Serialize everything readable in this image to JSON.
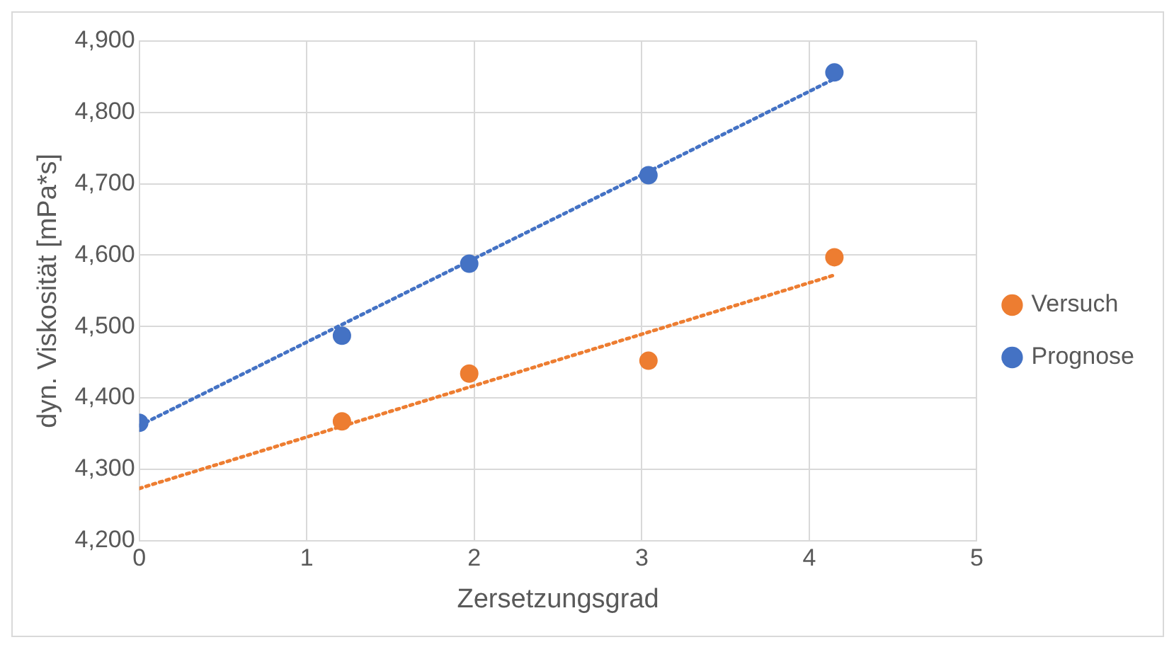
{
  "chart_data": {
    "type": "scatter",
    "xlabel": "Zersetzungsgrad",
    "ylabel": "dyn. Viskosität [mPa*s]",
    "xlim": [
      0,
      5
    ],
    "xticks": [
      0,
      1,
      2,
      3,
      4,
      5
    ],
    "ylim": [
      4200,
      4900
    ],
    "yticks": [
      {
        "value": 4200,
        "label": "4,200"
      },
      {
        "value": 4300,
        "label": "4,300"
      },
      {
        "value": 4400,
        "label": "4,400"
      },
      {
        "value": 4500,
        "label": "4,500"
      },
      {
        "value": 4600,
        "label": "4,600"
      },
      {
        "value": 4700,
        "label": "4,700"
      },
      {
        "value": 4800,
        "label": "4,800"
      },
      {
        "value": 4900,
        "label": "4,900"
      }
    ],
    "grid": true,
    "legend": "right",
    "marker": "circle",
    "series": [
      {
        "name": "Versuch",
        "color": "#ed7d31",
        "x": [
          1.21,
          1.97,
          3.04,
          4.15
        ],
        "values": [
          4367,
          4434,
          4452,
          4597
        ]
      },
      {
        "name": "Prognose",
        "color": "#4472c4",
        "x": [
          0,
          1.21,
          1.97,
          3.04,
          4.15
        ],
        "values": [
          4365,
          4487,
          4588,
          4712,
          4856
        ]
      },
      {
        "type": "line",
        "color": "#ed7d31",
        "line_style": "dotted",
        "marker": "none",
        "x": [
          0,
          4.15
        ],
        "values": [
          4273,
          4572
        ]
      },
      {
        "type": "line",
        "color": "#4472c4",
        "line_style": "dotted",
        "marker": "none",
        "x": [
          0,
          4.15
        ],
        "values": [
          4361,
          4847
        ]
      }
    ]
  }
}
